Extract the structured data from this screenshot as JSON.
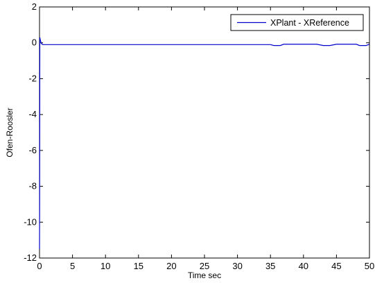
{
  "chart_data": {
    "type": "line",
    "title": "",
    "xlabel": "Time sec",
    "ylabel": "Ofen-Roosler",
    "xlim": [
      0,
      50
    ],
    "ylim": [
      -12,
      2
    ],
    "xticks": [
      "0",
      "5",
      "10",
      "15",
      "20",
      "25",
      "30",
      "35",
      "40",
      "45",
      "50"
    ],
    "yticks": [
      "2",
      "0",
      "-2",
      "-4",
      "-6",
      "-8",
      "-10",
      "-12"
    ],
    "grid": false,
    "legend_position": "top-right",
    "series": [
      {
        "name": "XPlant - XReference",
        "color": "#0000cc",
        "x": [
          0,
          0.02,
          0.05,
          0.1,
          0.2,
          0.3,
          0.5,
          1,
          5,
          10,
          15,
          20,
          25,
          30,
          35,
          35.5,
          36.5,
          37,
          40,
          42,
          43,
          44,
          45,
          48,
          48.5,
          49.5,
          50
        ],
        "y": [
          -11.5,
          -9.0,
          0.3,
          0.2,
          0.05,
          -0.05,
          -0.1,
          -0.1,
          -0.1,
          -0.1,
          -0.1,
          -0.1,
          -0.1,
          -0.1,
          -0.1,
          -0.15,
          -0.15,
          -0.08,
          -0.08,
          -0.08,
          -0.15,
          -0.15,
          -0.08,
          -0.08,
          -0.15,
          -0.15,
          -0.08
        ]
      }
    ]
  }
}
